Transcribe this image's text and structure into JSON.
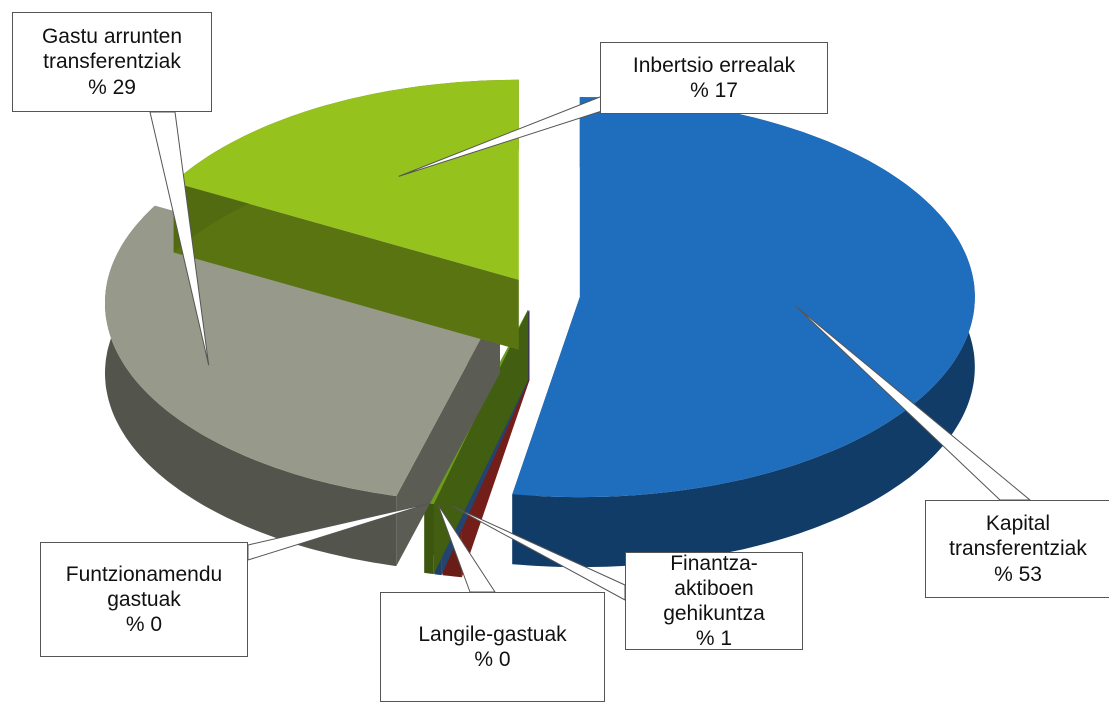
{
  "chart_data": {
    "type": "pie3d",
    "categories": [
      "Kapital transferentziak",
      "Finantza-aktiboen gehikuntza",
      "Langile-gastuak",
      "Funtzionamendu gastuak",
      "Gastu arrunten transferentziak",
      "Inbertsio errealak"
    ],
    "values": [
      53,
      0.8,
      0.3,
      0.4,
      29,
      17
    ],
    "value_labels": [
      "% 53",
      "% 1",
      "% 0",
      "% 0",
      "% 29",
      "% 17"
    ],
    "colors": [
      "#1f6dbd",
      "#c1322a",
      "#3a72bd",
      "#6d9c1c",
      "#979a8a",
      "#95c21d"
    ]
  }
}
